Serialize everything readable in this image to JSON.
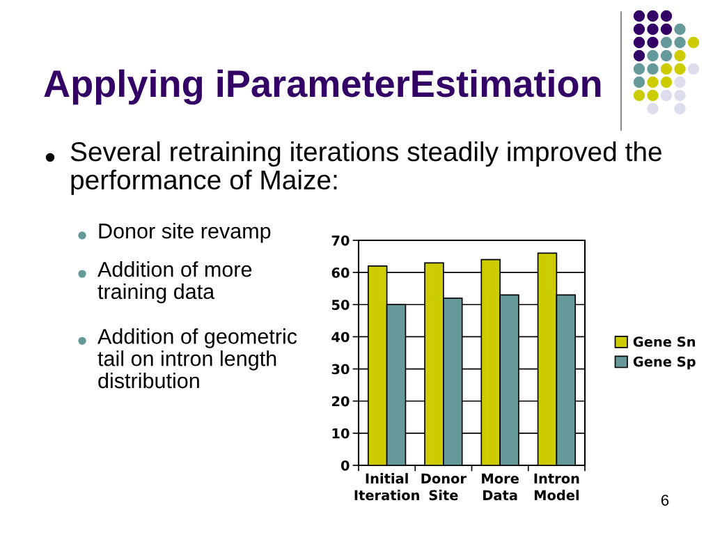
{
  "chart_data": {
    "type": "bar",
    "title": "Applying iParameterEstimation",
    "subtitle": "Several retraining iterations steadily improved the performance of Maize:",
    "annotations": [
      "Donor site revamp",
      "Addition of more training data",
      "Addition of geometric tail on intron length distribution",
      "6"
    ],
    "categories": [
      "Initial Iteration",
      "Donor Site",
      "More Data",
      "Intron Model"
    ],
    "series": [
      {
        "name": "Gene Sn",
        "color": "#cccc00",
        "values": [
          62,
          63,
          64,
          66
        ]
      },
      {
        "name": "Gene Sp",
        "color": "#669999",
        "values": [
          50,
          52,
          53,
          53
        ]
      }
    ],
    "ylim": [
      0,
      70
    ],
    "yticks": [
      0,
      10,
      20,
      30,
      40,
      50,
      60,
      70
    ],
    "grid": "y",
    "legend": "right"
  }
}
